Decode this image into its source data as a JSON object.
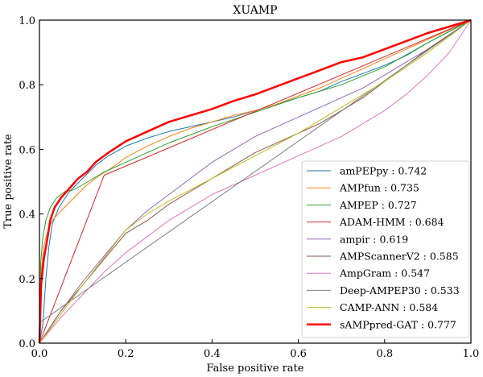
{
  "chart_data": {
    "type": "line",
    "title": "XUAMP",
    "xlabel": "False positive rate",
    "ylabel": "True positive rate",
    "xlim": [
      0,
      1
    ],
    "ylim": [
      0,
      1
    ],
    "xticks": [
      "0.0",
      "0.2",
      "0.4",
      "0.6",
      "0.8",
      "1.0"
    ],
    "yticks": [
      "0.0",
      "0.2",
      "0.4",
      "0.6",
      "0.8",
      "1.0"
    ],
    "grid": false,
    "legend_position": "bottom-right",
    "series": [
      {
        "name": "amPEPpy",
        "auc": "0.742",
        "label": "amPEPpy : 0.742",
        "color": "#1f77b4",
        "width": 1,
        "x": [
          0,
          0.008,
          0.015,
          0.022,
          0.03,
          0.045,
          0.07,
          0.1,
          0.13,
          0.16,
          0.2,
          0.25,
          0.3,
          0.35,
          0.4,
          0.45,
          0.5,
          0.55,
          0.6,
          0.65,
          0.7,
          0.75,
          0.8,
          0.85,
          0.9,
          0.95,
          1
        ],
        "y": [
          0,
          0.06,
          0.2,
          0.3,
          0.37,
          0.42,
          0.47,
          0.51,
          0.55,
          0.58,
          0.61,
          0.635,
          0.655,
          0.67,
          0.685,
          0.7,
          0.72,
          0.74,
          0.76,
          0.78,
          0.81,
          0.835,
          0.86,
          0.89,
          0.93,
          0.965,
          1
        ]
      },
      {
        "name": "AMPfun",
        "auc": "0.735",
        "label": "AMPfun : 0.735",
        "color": "#ff7f0e",
        "width": 1,
        "x": [
          0,
          0.004,
          0.01,
          0.02,
          0.03,
          0.05,
          0.08,
          0.11,
          0.14,
          0.17,
          0.2,
          0.25,
          0.3,
          0.35,
          0.4,
          0.45,
          0.5,
          0.55,
          0.6,
          0.65,
          0.7,
          0.75,
          0.8,
          0.85,
          0.9,
          0.95,
          1
        ],
        "y": [
          0,
          0.22,
          0.3,
          0.35,
          0.38,
          0.41,
          0.45,
          0.49,
          0.52,
          0.545,
          0.575,
          0.61,
          0.64,
          0.665,
          0.685,
          0.705,
          0.72,
          0.74,
          0.765,
          0.79,
          0.82,
          0.85,
          0.88,
          0.91,
          0.94,
          0.97,
          1
        ]
      },
      {
        "name": "AMPEP",
        "auc": "0.727",
        "label": "AMPEP : 0.727",
        "color": "#2ca02c",
        "width": 1,
        "x": [
          0,
          0.003,
          0.008,
          0.015,
          0.025,
          0.04,
          0.06,
          0.08,
          0.1,
          0.15,
          0.2,
          0.3,
          0.4,
          0.5,
          0.6,
          0.7,
          0.8,
          0.9,
          1
        ],
        "y": [
          0,
          0.25,
          0.33,
          0.38,
          0.42,
          0.45,
          0.47,
          0.475,
          0.49,
          0.53,
          0.56,
          0.62,
          0.67,
          0.715,
          0.76,
          0.8,
          0.855,
          0.93,
          1
        ]
      },
      {
        "name": "ADAM-HMM",
        "auc": "0.684",
        "label": "ADAM-HMM : 0.684",
        "color": "#d62728",
        "width": 1,
        "x": [
          0,
          0.15,
          1
        ],
        "y": [
          0,
          0.52,
          1
        ]
      },
      {
        "name": "ampir",
        "auc": "0.619",
        "label": "ampir : 0.619",
        "color": "#9467bd",
        "width": 1,
        "x": [
          0,
          0.05,
          0.1,
          0.15,
          0.2,
          0.25,
          0.3,
          0.35,
          0.4,
          0.45,
          0.5,
          0.55,
          0.6,
          0.65,
          0.7,
          0.75,
          0.8,
          0.85,
          0.9,
          0.95,
          1
        ],
        "y": [
          0,
          0.1,
          0.19,
          0.27,
          0.35,
          0.41,
          0.46,
          0.51,
          0.56,
          0.6,
          0.64,
          0.67,
          0.7,
          0.73,
          0.76,
          0.79,
          0.83,
          0.87,
          0.91,
          0.955,
          1
        ]
      },
      {
        "name": "AMPScannerV2",
        "auc": "0.585",
        "label": "AMPScannerV2 : 0.585",
        "color": "#8c564b",
        "width": 1,
        "x": [
          0,
          0.05,
          0.1,
          0.15,
          0.2,
          0.25,
          0.3,
          0.35,
          0.4,
          0.45,
          0.5,
          0.55,
          0.6,
          0.65,
          0.7,
          0.75,
          0.8,
          0.85,
          0.9,
          0.95,
          1
        ],
        "y": [
          0,
          0.1,
          0.18,
          0.26,
          0.34,
          0.38,
          0.43,
          0.47,
          0.51,
          0.55,
          0.59,
          0.62,
          0.65,
          0.68,
          0.72,
          0.76,
          0.81,
          0.86,
          0.91,
          0.955,
          1
        ]
      },
      {
        "name": "AmpGram",
        "auc": "0.547",
        "label": "AmpGram : 0.547",
        "color": "#e377c2",
        "width": 1,
        "x": [
          0,
          0.05,
          0.1,
          0.15,
          0.2,
          0.25,
          0.3,
          0.35,
          0.4,
          0.45,
          0.5,
          0.55,
          0.6,
          0.65,
          0.7,
          0.75,
          0.8,
          0.85,
          0.9,
          0.95,
          1
        ],
        "y": [
          0,
          0.08,
          0.15,
          0.22,
          0.28,
          0.33,
          0.38,
          0.42,
          0.46,
          0.49,
          0.52,
          0.55,
          0.58,
          0.61,
          0.64,
          0.68,
          0.72,
          0.77,
          0.83,
          0.9,
          1
        ]
      },
      {
        "name": "Deep-AMPEP30",
        "auc": "0.533",
        "label": "Deep-AMPEP30 : 0.533",
        "color": "#7f7f7f",
        "width": 1,
        "x": [
          0,
          0.002,
          1
        ],
        "y": [
          0,
          0.065,
          1
        ]
      },
      {
        "name": "CAMP-ANN",
        "auc": "0.584",
        "label": "CAMP-ANN : 0.584",
        "color": "#bcbd22",
        "width": 1,
        "x": [
          0,
          0.1,
          0.2,
          0.25,
          0.3,
          0.4,
          0.5,
          0.6,
          0.7,
          0.8,
          0.9,
          1
        ],
        "y": [
          0,
          0.18,
          0.35,
          0.4,
          0.44,
          0.51,
          0.58,
          0.65,
          0.73,
          0.81,
          0.9,
          1
        ]
      },
      {
        "name": "sAMPpred-GAT",
        "auc": "0.777",
        "label": "sAMPpred-GAT : 0.777",
        "color": "#ff0000",
        "width": 2.5,
        "x": [
          0,
          0.004,
          0.01,
          0.018,
          0.025,
          0.035,
          0.05,
          0.07,
          0.09,
          0.11,
          0.13,
          0.16,
          0.2,
          0.25,
          0.3,
          0.35,
          0.4,
          0.45,
          0.5,
          0.55,
          0.6,
          0.65,
          0.7,
          0.75,
          0.8,
          0.85,
          0.9,
          0.95,
          1
        ],
        "y": [
          0,
          0.18,
          0.26,
          0.32,
          0.38,
          0.42,
          0.45,
          0.48,
          0.51,
          0.53,
          0.56,
          0.59,
          0.625,
          0.655,
          0.685,
          0.705,
          0.725,
          0.75,
          0.77,
          0.795,
          0.82,
          0.845,
          0.87,
          0.885,
          0.91,
          0.935,
          0.96,
          0.98,
          1
        ]
      }
    ]
  }
}
